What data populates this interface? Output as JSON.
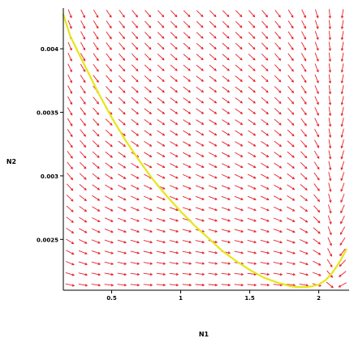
{
  "chart_data": {
    "type": "direction-field",
    "title": "",
    "xlabel": "N1",
    "ylabel": "N2",
    "xlim": [
      0.15,
      2.22
    ],
    "ylim": [
      0.0021,
      0.00432
    ],
    "x_ticks": [
      {
        "value": 0.5,
        "label": "0.5"
      },
      {
        "value": 1.0,
        "label": "1"
      },
      {
        "value": 1.5,
        "label": "1.5"
      },
      {
        "value": 2.0,
        "label": "2"
      }
    ],
    "y_ticks": [
      {
        "value": 0.0025,
        "label": "0.0025"
      },
      {
        "value": 0.003,
        "label": "0.003"
      },
      {
        "value": 0.0035,
        "label": "0.0035"
      },
      {
        "value": 0.004,
        "label": "0.004"
      }
    ],
    "arrow_color": "#e8202a",
    "curve_color": "#e6e619",
    "trajectory": {
      "x": [
        0.15,
        0.2,
        0.3,
        0.4,
        0.5,
        0.6,
        0.7,
        0.8,
        0.9,
        1.0,
        1.1,
        1.2,
        1.3,
        1.4,
        1.5,
        1.6,
        1.7,
        1.75,
        1.8,
        1.85,
        1.9,
        1.95,
        2.0,
        2.05,
        2.1,
        2.15,
        2.2
      ],
      "y": [
        0.00427,
        0.0041,
        0.00388,
        0.00366,
        0.00346,
        0.00328,
        0.00312,
        0.00297,
        0.00284,
        0.00272,
        0.00261,
        0.00251,
        0.00241,
        0.00233,
        0.00226,
        0.0022,
        0.00216,
        0.002145,
        0.00213,
        0.002125,
        0.002125,
        0.00213,
        0.002145,
        0.00218,
        0.00224,
        0.00232,
        0.00242
      ]
    }
  }
}
